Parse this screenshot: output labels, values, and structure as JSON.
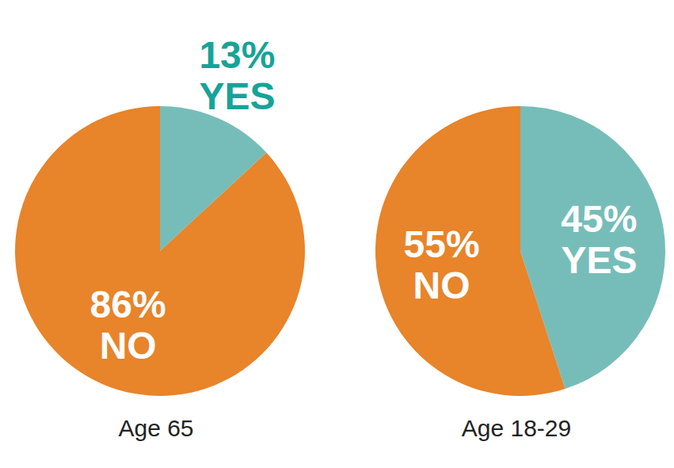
{
  "chart_data": [
    {
      "type": "pie",
      "title": "Age 65",
      "categories": [
        "YES",
        "NO"
      ],
      "values": [
        13,
        86
      ],
      "value_labels": [
        "13%",
        "86%"
      ],
      "colors": [
        "#76bdb9",
        "#e8842a"
      ],
      "data_labels": true
    },
    {
      "type": "pie",
      "title": "Age 18-29",
      "categories": [
        "YES",
        "NO"
      ],
      "values": [
        45,
        55
      ],
      "value_labels": [
        "45%",
        "55%"
      ],
      "colors": [
        "#76bdb9",
        "#e8842a"
      ],
      "data_labels": true
    }
  ]
}
